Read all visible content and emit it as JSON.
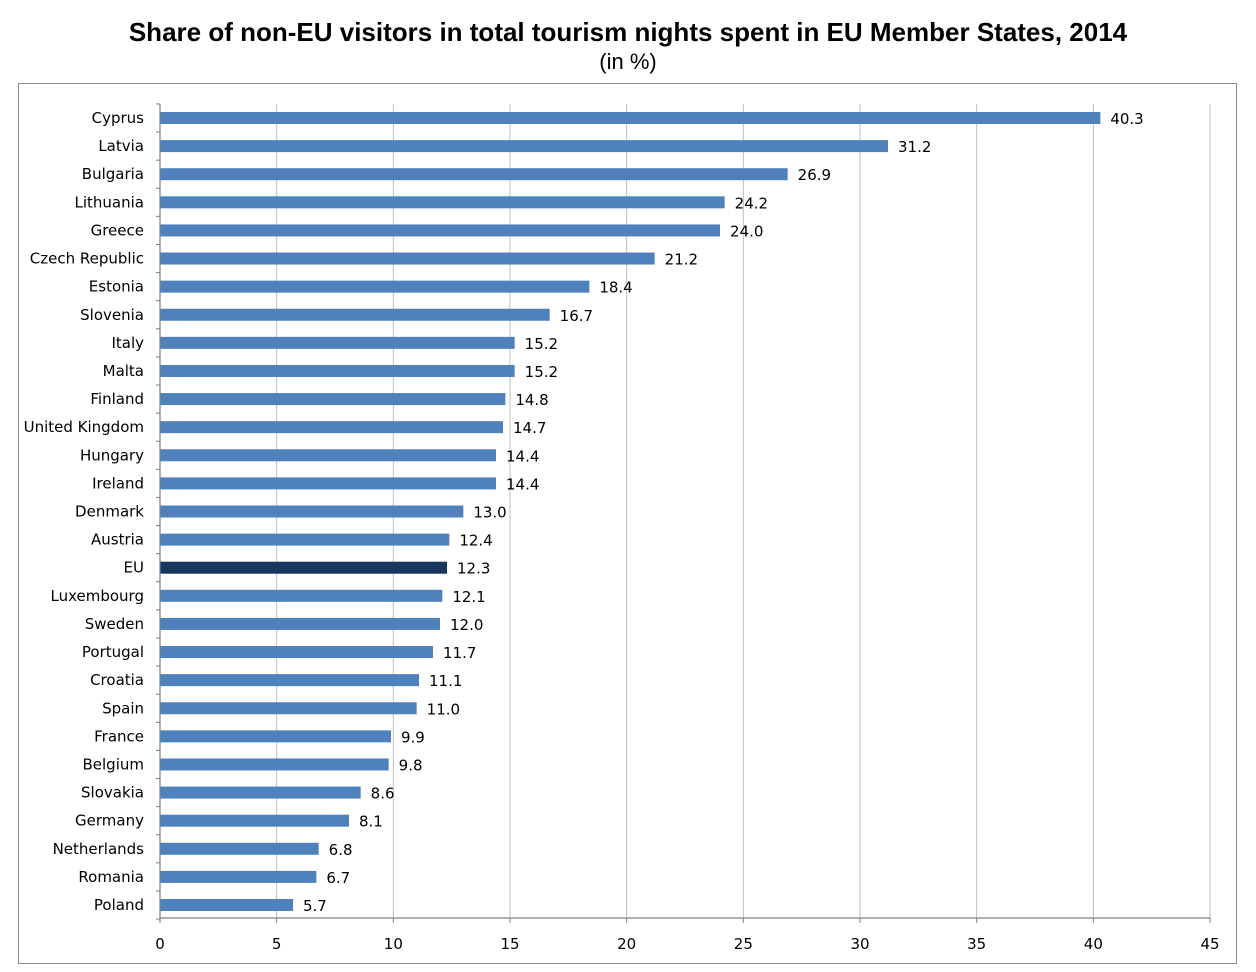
{
  "chart_data": {
    "type": "bar",
    "orientation": "horizontal",
    "title": "Share of non-EU visitors in total tourism nights spent in EU Member States, 2014",
    "subtitle": "(in %)",
    "xlabel": "",
    "ylabel": "",
    "xlim": [
      0,
      45
    ],
    "ticks": [
      0,
      5,
      10,
      15,
      20,
      25,
      30,
      35,
      40,
      45
    ],
    "grid": "vertical",
    "legend": "none",
    "colors": {
      "bar": "#4f81bd",
      "highlight": "#17375e",
      "grid": "#bfbfbf"
    },
    "highlight_category": "EU",
    "categories": [
      "Cyprus",
      "Latvia",
      "Bulgaria",
      "Lithuania",
      "Greece",
      "Czech Republic",
      "Estonia",
      "Slovenia",
      "Italy",
      "Malta",
      "Finland",
      "United Kingdom",
      "Hungary",
      "Ireland",
      "Denmark",
      "Austria",
      "EU",
      "Luxembourg",
      "Sweden",
      "Portugal",
      "Croatia",
      "Spain",
      "France",
      "Belgium",
      "Slovakia",
      "Germany",
      "Netherlands",
      "Romania",
      "Poland"
    ],
    "values": [
      40.3,
      31.2,
      26.9,
      24.2,
      24.0,
      21.2,
      18.4,
      16.7,
      15.2,
      15.2,
      14.8,
      14.7,
      14.4,
      14.4,
      13.0,
      12.4,
      12.3,
      12.1,
      12.0,
      11.7,
      11.1,
      11.0,
      9.9,
      9.8,
      8.6,
      8.1,
      6.8,
      6.7,
      5.7
    ],
    "value_labels": [
      "40.3",
      "31.2",
      "26.9",
      "24.2",
      "24.0",
      "21.2",
      "18.4",
      "16.7",
      "15.2",
      "15.2",
      "14.8",
      "14.7",
      "14.4",
      "14.4",
      "13.0",
      "12.4",
      "12.3",
      "12.1",
      "12.0",
      "11.7",
      "11.1",
      "11.0",
      "9.9",
      "9.8",
      "8.6",
      "8.1",
      "6.8",
      "6.7",
      "5.7"
    ]
  }
}
